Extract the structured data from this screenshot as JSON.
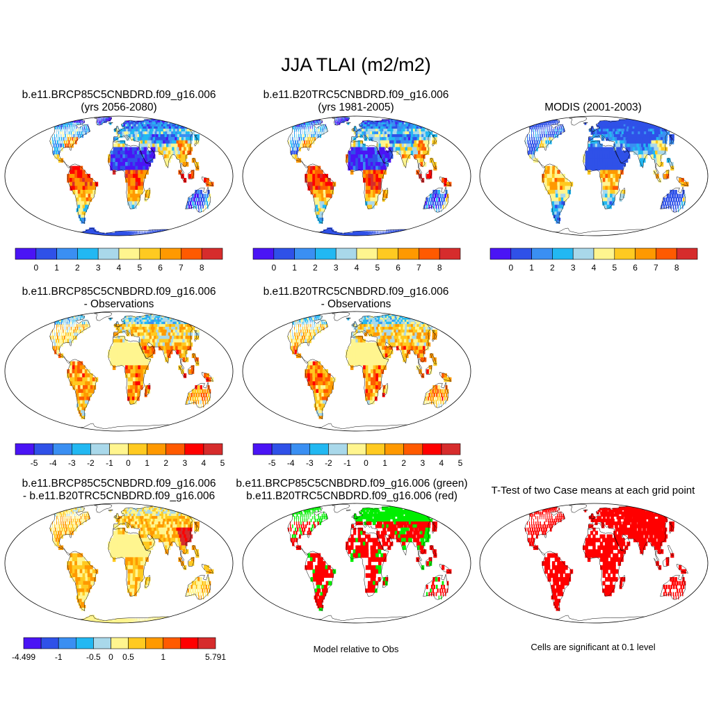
{
  "title": "JJA TLAI (m2/m2)",
  "colors": [
    "#4a14f5",
    "#2f51e8",
    "#3a8ff2",
    "#22b8f2",
    "#a9d8ea",
    "#fff58f",
    "#ffca21",
    "#ff9900",
    "#ff5a00",
    "#ff0000",
    "#d62c2c"
  ],
  "panels": {
    "p1": {
      "title": [
        "b.e11.BRCP85C5CNBDRD.f09_g16.006",
        "(yrs 2056-2080)"
      ],
      "ticks": [
        "0",
        "1",
        "2",
        "3",
        "4",
        "5",
        "6",
        "7",
        "8"
      ]
    },
    "p2": {
      "title": [
        "b.e11.B20TRC5CNBDRD.f09_g16.006",
        "(yrs 1981-2005)"
      ],
      "ticks": [
        "0",
        "1",
        "2",
        "3",
        "4",
        "5",
        "6",
        "7",
        "8"
      ]
    },
    "p3": {
      "title": [
        "MODIS (2001-2003)"
      ],
      "ticks": [
        "0",
        "1",
        "2",
        "3",
        "4",
        "5",
        "6",
        "7",
        "8"
      ]
    },
    "p4": {
      "title": [
        "b.e11.BRCP85C5CNBDRD.f09_g16.006",
        "- Observations"
      ],
      "ticks": [
        "-5",
        "-4",
        "-3",
        "-2",
        "-1",
        "0",
        "1",
        "2",
        "3",
        "4",
        "5"
      ]
    },
    "p5": {
      "title": [
        "b.e11.B20TRC5CNBDRD.f09_g16.006",
        "- Observations"
      ],
      "ticks": [
        "-5",
        "-4",
        "-3",
        "-2",
        "-1",
        "0",
        "1",
        "2",
        "3",
        "4",
        "5"
      ]
    },
    "p6": {
      "title": [
        "b.e11.BRCP85C5CNBDRD.f09_g16.006",
        "- b.e11.B20TRC5CNBDRD.f09_g16.006"
      ],
      "ticks": [
        "-4.499",
        "-1",
        "-0.5",
        "0",
        "0.5",
        "1",
        "5.791"
      ]
    },
    "p7": {
      "title": [
        "b.e11.BRCP85C5CNBDRD.f09_g16.006 (green)",
        "b.e11.B20TRC5CNBDRD.f09_g16.006 (red)"
      ],
      "caption": "Model relative to Obs"
    },
    "p8": {
      "title": [
        "T-Test of two Case means at each grid point"
      ],
      "caption": "Cells are significant at 0.1 level"
    }
  }
}
